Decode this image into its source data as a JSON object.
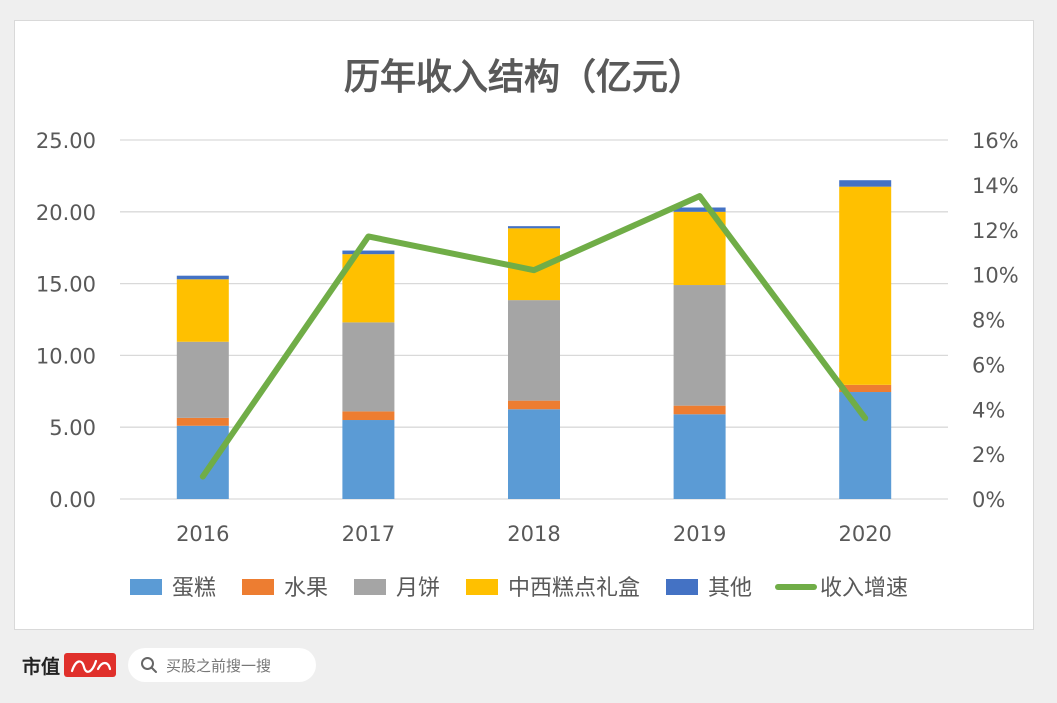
{
  "chart_data": {
    "type": "bar",
    "title": "历年收入结构（亿元）",
    "categories": [
      "2016",
      "2017",
      "2018",
      "2019",
      "2020"
    ],
    "stacked": true,
    "series": [
      {
        "name": "蛋糕",
        "values": [
          5.1,
          5.5,
          6.25,
          5.9,
          7.45
        ],
        "color": "#5b9bd5"
      },
      {
        "name": "水果",
        "values": [
          0.55,
          0.6,
          0.6,
          0.6,
          0.5
        ],
        "color": "#ed7d31"
      },
      {
        "name": "月饼",
        "values": [
          5.3,
          6.2,
          7.0,
          8.4,
          0.0
        ],
        "color": "#a5a5a5"
      },
      {
        "name": "中西糕点礼盒",
        "values": [
          4.35,
          4.75,
          5.0,
          5.1,
          13.8
        ],
        "color": "#ffc000"
      },
      {
        "name": "其他",
        "values": [
          0.25,
          0.25,
          0.15,
          0.3,
          0.45
        ],
        "color": "#4472c4"
      }
    ],
    "line_series": {
      "name": "收入增速",
      "axis": "right",
      "values": [
        1.0,
        11.7,
        10.2,
        13.5,
        3.6
      ],
      "color": "#70ad47"
    },
    "left_axis": {
      "ticks": [
        "0.00",
        "5.00",
        "10.00",
        "15.00",
        "20.00",
        "25.00"
      ],
      "min": 0,
      "max": 25
    },
    "right_axis": {
      "ticks": [
        "0%",
        "2%",
        "4%",
        "6%",
        "8%",
        "10%",
        "12%",
        "14%",
        "16%"
      ],
      "min": 0,
      "max": 16
    },
    "grid": true,
    "legend_position": "bottom"
  },
  "watermark": "市值风云",
  "footer": {
    "brand": "市值",
    "search_placeholder": "买股之前搜一搜"
  },
  "colors": {
    "background": "#efefef",
    "card": "#ffffff",
    "gridline": "#d9d9d9",
    "text": "#595959",
    "brand_red": "#e0302b"
  }
}
